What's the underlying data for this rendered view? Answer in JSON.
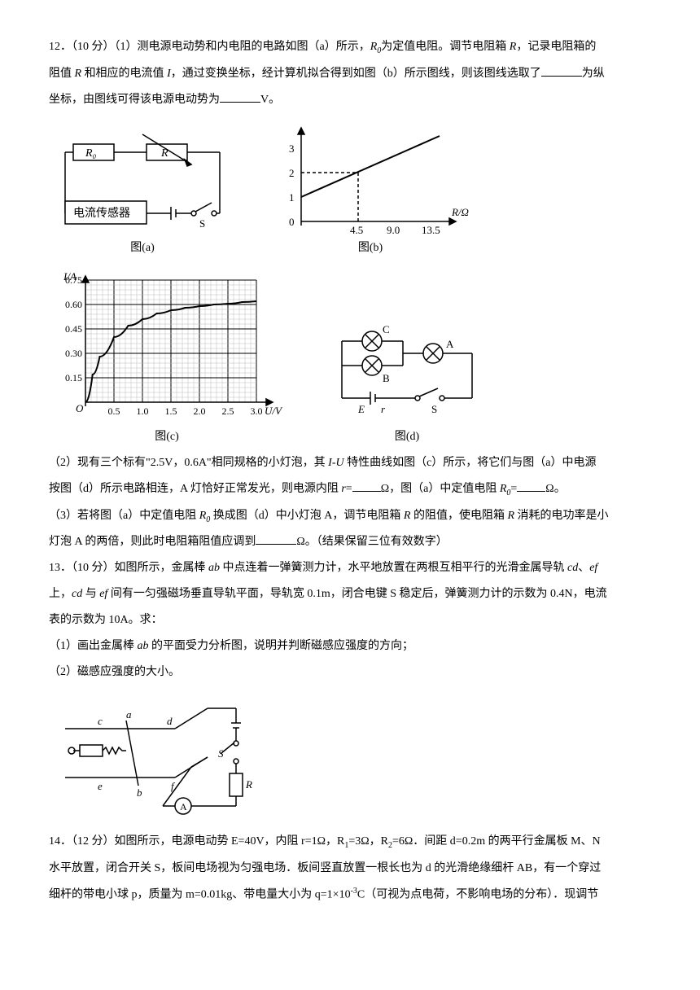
{
  "q12": {
    "heading": "12．（10 分）（1）测电源电动势和内电阻的电路如图（a）所示，",
    "R0": "R",
    "R0sub": "0",
    "afterR0": "为定值电阻。调节电阻箱 ",
    "R": "R",
    "afterR": "，记录电阻箱的",
    "line2a": "阻值 ",
    "line2b": " 和相应的电流值 ",
    "I": "I",
    "line2c": "，通过变换坐标，经计算机拟合得到如图（b）所示图线，则该图线选取了",
    "line2d": "为纵",
    "line3a": "坐标，由图线可得该电源电动势为",
    "line3b": "V。",
    "figA": {
      "caption": "图(a)",
      "R0_label": "R₀",
      "R_label": "R",
      "sensor_label": "电流传感器",
      "switch_label": "S"
    },
    "figB": {
      "caption": "图(b)",
      "ytick0": "0",
      "ytick1": "1",
      "ytick2": "2",
      "ytick3": "3",
      "xtick1": "4.5",
      "xtick2": "9.0",
      "xtick3": "13.5",
      "xlabel": "R/Ω",
      "line_color": "#000",
      "dash_color": "#000",
      "bg": "#ffffff"
    },
    "figC": {
      "caption": "图(c)",
      "ylabel": "I/A",
      "xlabel": "U/V",
      "yticks": [
        "0.15",
        "0.30",
        "0.45",
        "0.60",
        "0.75"
      ],
      "xticks": [
        "0.5",
        "1.0",
        "1.5",
        "2.0",
        "2.5",
        "3.0"
      ],
      "origin": "O",
      "curve_color": "#000",
      "grid_minor": "#bbb",
      "grid_major": "#000",
      "bg": "#ffffff",
      "curve_points": [
        [
          0,
          0
        ],
        [
          0.125,
          0.17
        ],
        [
          0.25,
          0.28
        ],
        [
          0.5,
          0.4
        ],
        [
          0.75,
          0.47
        ],
        [
          1.0,
          0.51
        ],
        [
          1.25,
          0.545
        ],
        [
          1.5,
          0.565
        ],
        [
          1.75,
          0.58
        ],
        [
          2.0,
          0.59
        ],
        [
          2.25,
          0.6
        ],
        [
          2.5,
          0.605
        ],
        [
          2.75,
          0.615
        ],
        [
          3.0,
          0.62
        ]
      ]
    },
    "figD": {
      "caption": "图(d)",
      "A": "A",
      "B": "B",
      "C": "C",
      "E": "E",
      "r": "r",
      "S": "S"
    },
    "part2a": "（2）现有三个标有\"2.5V，0.6A\"相同规格的小灯泡，其 ",
    "part2b": " 特性曲线如图（c）所示，将它们与图（a）中电源",
    "part2IU": "I-U",
    "part2c": "按图（d）所示电路相连，A 灯恰好正常发光，则电源内阻 ",
    "part2r": "r",
    "part2d": "=",
    "part2e": "Ω，图（a）中定值电阻 ",
    "part2f": "=",
    "part2g": "Ω。",
    "part3a": "（3）若将图（a）中定值电阻 ",
    "part3b": " 换成图（d）中小灯泡 A，调节电阻箱 ",
    "part3c": " 的阻值，使电阻箱 ",
    "part3d": " 消耗的电功率是小",
    "part3e": "灯泡 A 的两倍，则此时电阻箱阻值应调到",
    "part3f": "Ω。（结果保留三位有效数字）"
  },
  "q13": {
    "heading": "13．（10 分）如图所示，金属棒 ",
    "ab": "ab",
    "h2": " 中点连着一弹簧测力计，水平地放置在两根互相平行的光滑金属导轨 ",
    "cd": "cd",
    "sep": "、",
    "ef": "ef",
    "h3": "上，",
    "h4": " 与 ",
    "h5": " 间有一匀强磁场垂直导轨平面，导轨宽 0.1m，闭合电键 S 稳定后，弹簧测力计的示数为 0.4N，电流",
    "h6": "表的示数为 10A。求：",
    "p1": "（1）画出金属棒 ",
    "p1b": " 的平面受力分析图，说明并判断磁感应强度的方向；",
    "p2": "（2）磁感应强度的大小。",
    "fig": {
      "c": "c",
      "a": "a",
      "d": "d",
      "e": "e",
      "b": "b",
      "f": "f",
      "S": "S",
      "R": "R",
      "A": "A"
    }
  },
  "q14": {
    "heading": "14．（12 分）如图所示，电源电动势 E=40V，内阻 r=1Ω，R",
    "sub1": "1",
    "h2": "=3Ω，R",
    "sub2": "2",
    "h3": "=6Ω．间距 d=0.2m 的两平行金属板 M、N",
    "h4": "水平放置，闭合开关 S，板间电场视为匀强电场．板间竖直放置一根长也为 d 的光滑绝缘细杆 AB，有一个穿过",
    "h5a": "细杆的带电小球 p，质量为 m=0.01kg、带电量大小为 q=1×10",
    "exp": "-3",
    "h5b": "C（可视为点电荷，不影响电场的分布）．现调节"
  }
}
